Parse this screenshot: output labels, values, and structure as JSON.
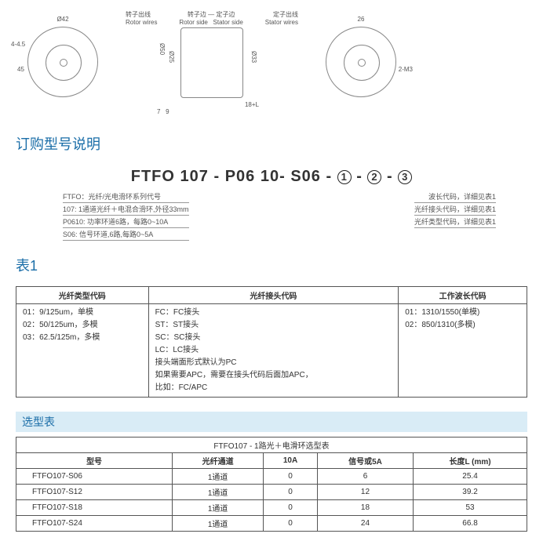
{
  "diagram": {
    "d42": "Ø42",
    "d4455": "4-4.5",
    "deg45": "45",
    "rotor_cn": "转子出线",
    "rotor_en": "Rotor wires",
    "rotor_side_cn": "转子边",
    "rotor_side_en": "Rotor side",
    "stator_side_cn": "定子边",
    "stator_side_en": "Stator side",
    "stator_cn": "定子出线",
    "stator_en": "Stator wires",
    "d50": "Ø50",
    "d25": "Ø25",
    "d33": "Ø33",
    "len18l": "18+L",
    "len9": "9",
    "len7": "7",
    "len26": "26",
    "m3": "2-M3"
  },
  "sections": {
    "order_title": "订购型号说明",
    "table1_title": "表1",
    "selection_title": "选型表"
  },
  "partnum": {
    "p1": "FTFO",
    "p2": "107",
    "dash": " - ",
    "p3": "P06",
    "p4": "10",
    "p5": "S06",
    "c1": "1",
    "c2": "2",
    "c3": "3"
  },
  "explain_left": {
    "l1": "FTFO：光纤/光电滑环系列代号",
    "l2": "107: 1通道光纤＋电混合滑环,外径33mm",
    "l3": "P0610: 功率环道6路，每路0~10A",
    "l4": "S06: 信号环道,6路,每路0~5A"
  },
  "explain_right": {
    "r1": "波长代码，详细见表1",
    "r2": "光纤接头代码，详细见表1",
    "r3": "光纤类型代码，详细见表1"
  },
  "table1": {
    "h1": "光纤类型代码",
    "h2": "光纤接头代码",
    "h3": "工作波长代码",
    "c1l1": "01：9/125um，单模",
    "c1l2": "02：50/125um，多模",
    "c1l3": "03：62.5/125m，多模",
    "c2l1": "FC：FC接头",
    "c2l2": "ST：ST接头",
    "c2l3": "SC：SC接头",
    "c2l4": "LC：LC接头",
    "c2l5": "接头端面形式默认为PC",
    "c2l6": "如果需要APC，需要在接头代码后面加APC，",
    "c2l7": "比如：FC/APC",
    "c3l1": "01：1310/1550(单模)",
    "c3l2": "02：850/1310(多模)"
  },
  "table2": {
    "caption": "FTFO107 -  1路光＋电滑环选型表",
    "h_model": "型号",
    "h_fiber": "光纤通道",
    "h_10a": "10A",
    "h_sig": "信号或5A",
    "h_len": "长度L (mm)",
    "rows": [
      {
        "model": "FTFO107-S06",
        "fiber": "1通道",
        "p10a": "0",
        "sig": "6",
        "len": "25.4"
      },
      {
        "model": "FTFO107-S12",
        "fiber": "1通道",
        "p10a": "0",
        "sig": "12",
        "len": "39.2"
      },
      {
        "model": "FTFO107-S18",
        "fiber": "1通道",
        "p10a": "0",
        "sig": "18",
        "len": "53"
      },
      {
        "model": "FTFO107-S24",
        "fiber": "1通道",
        "p10a": "0",
        "sig": "24",
        "len": "66.8"
      }
    ]
  }
}
